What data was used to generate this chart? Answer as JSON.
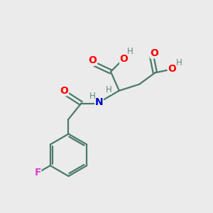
{
  "bg_color": "#ebebeb",
  "bond_color": "#4a7a6a",
  "bond_width": 1.6,
  "atom_colors": {
    "O": "#ff0000",
    "N": "#0000cc",
    "F": "#dd44cc",
    "H": "#5a8a7a",
    "C": "#4a7a6a"
  },
  "font_size_atom": 10,
  "font_size_h": 8.5
}
